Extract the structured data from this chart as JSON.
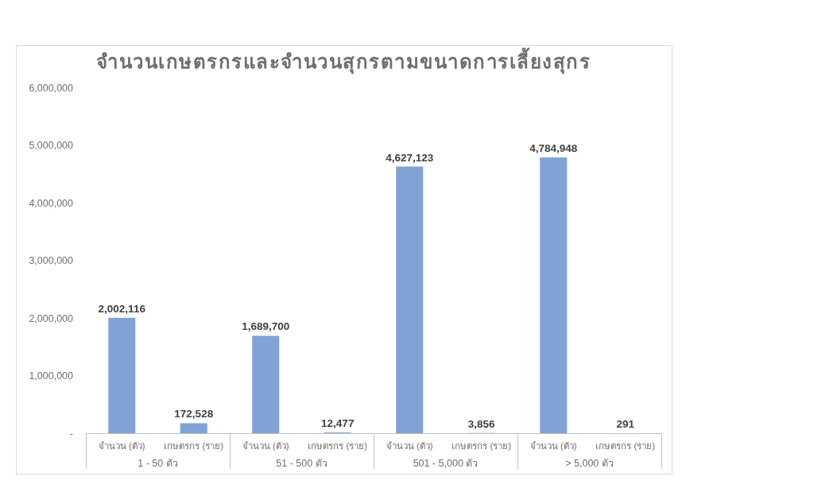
{
  "chart_data": {
    "type": "bar",
    "title": "จำนวนเกษตรกรและจำนวนสุกรตามขนาดการเลี้ยงสุกร",
    "categories": [
      "จำนวน (ตัว)",
      "เกษตรกร (ราย)",
      "จำนวน (ตัว)",
      "เกษตรกร (ราย)",
      "จำนวน (ตัว)",
      "เกษตรกร (ราย)",
      "จำนวน (ตัว)",
      "เกษตรกร (ราย)"
    ],
    "values": [
      2002116,
      172528,
      1689700,
      12477,
      4627123,
      3856,
      4784948,
      291
    ],
    "value_labels": [
      "2,002,116",
      "172,528",
      "1,689,700",
      "12,477",
      "4,627,123",
      "3,856",
      "4,784,948",
      "291"
    ],
    "color": "#7fa3d4",
    "ylim": [
      0,
      6000000
    ],
    "yticks": [
      {
        "value": 0,
        "label": "-"
      },
      {
        "value": 1000000,
        "label": "1,000,000"
      },
      {
        "value": 2000000,
        "label": "2,000,000"
      },
      {
        "value": 3000000,
        "label": "3,000,000"
      },
      {
        "value": 4000000,
        "label": "4,000,000"
      },
      {
        "value": 5000000,
        "label": "5,000,000"
      },
      {
        "value": 6000000,
        "label": "6,000,000"
      }
    ],
    "annotations": [
      "1 - 50 ตัว",
      "51 - 500 ตัว",
      "501 - 5,000 ตัว",
      "> 5,000 ตัว"
    ]
  }
}
